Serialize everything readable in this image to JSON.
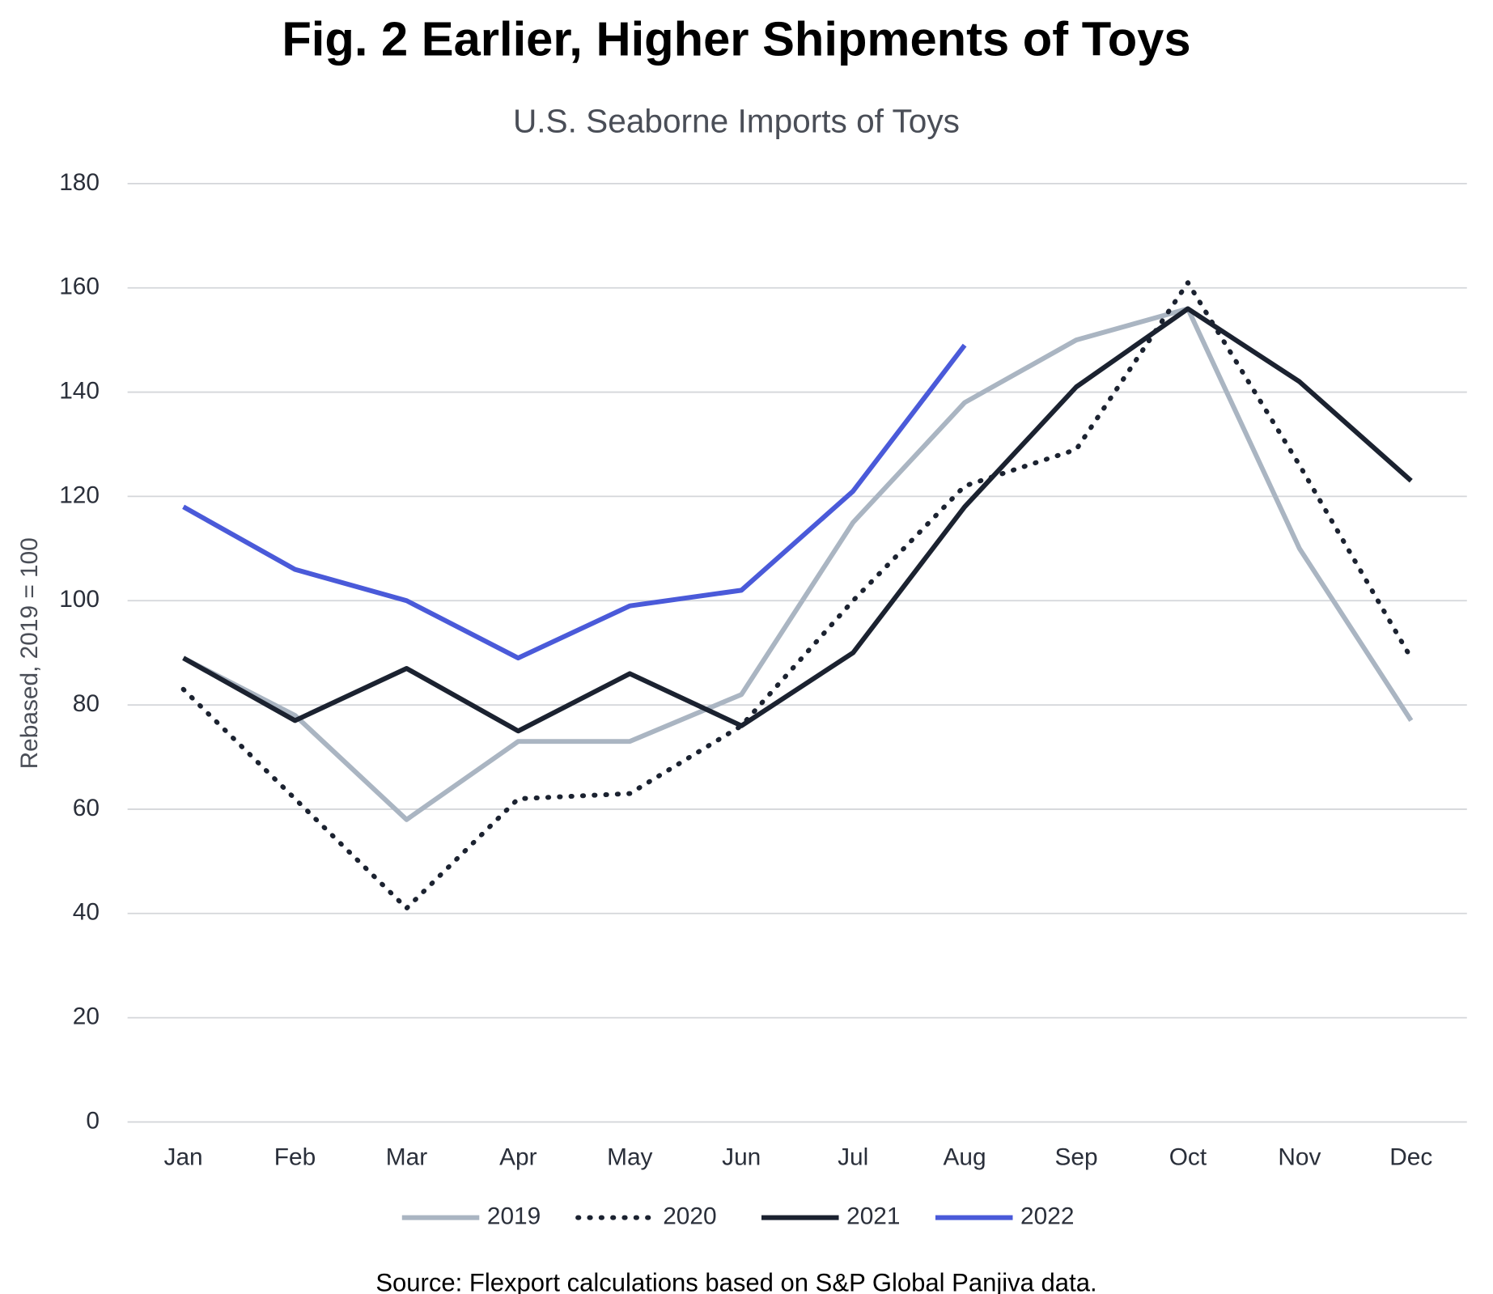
{
  "chart_data": {
    "type": "line",
    "title": "Fig. 2 Earlier, Higher Shipments of Toys",
    "subtitle": "U.S. Seaborne Imports of Toys",
    "y_label": "Rebased, 2019 = 100",
    "source": "Source: Flexport calculations based on S&P Global Panjiva data.",
    "categories": [
      "Jan",
      "Feb",
      "Mar",
      "Apr",
      "May",
      "Jun",
      "Jul",
      "Aug",
      "Sep",
      "Oct",
      "Nov",
      "Dec"
    ],
    "series": [
      {
        "name": "2019",
        "color": "#aab5c2",
        "style": "solid",
        "values": [
          89,
          78,
          58,
          73,
          73,
          82,
          115,
          138,
          150,
          156,
          110,
          77
        ]
      },
      {
        "name": "2020",
        "color": "#1b2230",
        "style": "dotted",
        "values": [
          83,
          62,
          41,
          62,
          63,
          76,
          100,
          122,
          129,
          161,
          126,
          89
        ]
      },
      {
        "name": "2021",
        "color": "#1b2230",
        "style": "solid",
        "values": [
          89,
          77,
          87,
          75,
          86,
          76,
          90,
          118,
          141,
          156,
          142,
          123
        ]
      },
      {
        "name": "2022",
        "color": "#4a5ad9",
        "style": "solid",
        "values": [
          118,
          106,
          100,
          89,
          99,
          102,
          121,
          149,
          null,
          null,
          null,
          null
        ]
      }
    ],
    "ylim": [
      0,
      180
    ],
    "yticks": [
      0,
      20,
      40,
      60,
      80,
      100,
      120,
      140,
      160,
      180
    ],
    "grid": true,
    "legend": "bottom"
  }
}
